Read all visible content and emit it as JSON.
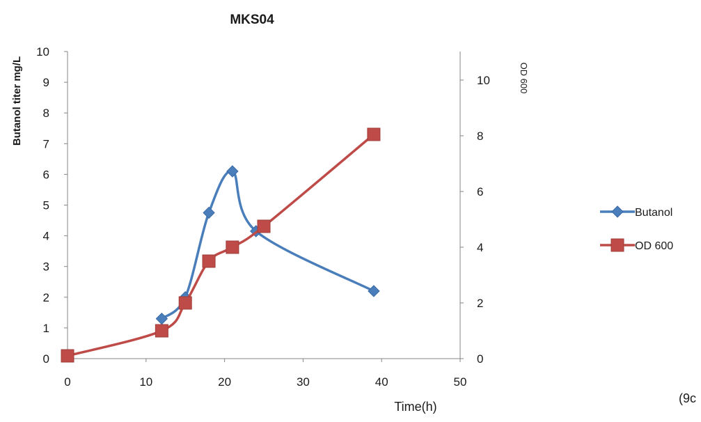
{
  "chart_data": {
    "type": "line",
    "title": "MKS04",
    "xlabel": "Time(h)",
    "ylabel": "Butanol titer mg/L",
    "y2label": "OD 600",
    "xlim": [
      0,
      50
    ],
    "ylim": [
      0,
      10
    ],
    "y2lim": [
      0,
      11
    ],
    "xticks": [
      0,
      10,
      20,
      30,
      40,
      50
    ],
    "yticks": [
      0,
      1,
      2,
      3,
      4,
      5,
      6,
      7,
      8,
      9,
      10
    ],
    "y2ticks": [
      0,
      2,
      4,
      6,
      8,
      10
    ],
    "grid": false,
    "legend_position": "right",
    "series": [
      {
        "name": "Butanol",
        "axis": "left",
        "color": "#4a7ebb",
        "marker": "diamond",
        "x": [
          12,
          15,
          18,
          21,
          24,
          39
        ],
        "y": [
          1.3,
          2.0,
          4.75,
          6.1,
          4.15,
          2.2
        ]
      },
      {
        "name": "OD 600",
        "axis": "right",
        "color": "#be4b48",
        "marker": "square",
        "x": [
          0,
          12,
          15,
          18,
          21,
          25,
          39
        ],
        "y": [
          0.1,
          1.0,
          2.0,
          3.5,
          4.0,
          4.75,
          8.05
        ]
      }
    ]
  },
  "annotation": "(9c"
}
